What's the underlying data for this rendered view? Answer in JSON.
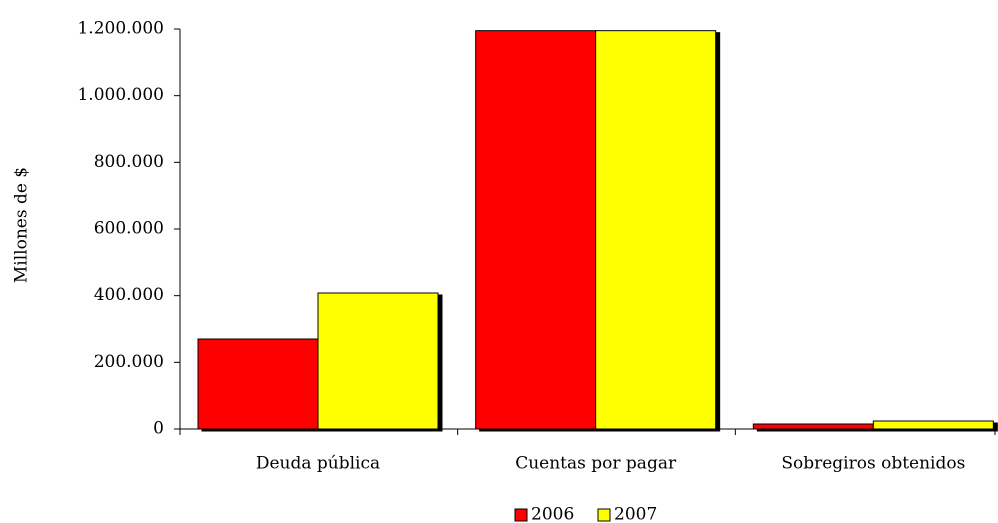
{
  "chart_data": {
    "type": "bar",
    "y_label": "Millones de $",
    "categories": [
      "Deuda pública",
      "Cuentas por pagar",
      "Sobregiros obtenidos"
    ],
    "series": [
      {
        "name": "2006",
        "color": "#ff0000",
        "values": [
          270000,
          1195000,
          15000
        ]
      },
      {
        "name": "2007",
        "color": "#ffff00",
        "values": [
          408000,
          1195000,
          24000
        ]
      }
    ],
    "ylim": [
      0,
      1200000
    ],
    "yticks": [
      0,
      {
        "value": 200000,
        "label": "200.000"
      },
      {
        "value": 400000,
        "label": "400.000"
      },
      {
        "value": 600000,
        "label": "600.000"
      },
      {
        "value": 800000,
        "label": "800.000"
      },
      {
        "value": 1000000,
        "label": "1.000.000"
      },
      {
        "value": 1200000,
        "label": "1.200.000"
      }
    ],
    "legend": "bottom"
  }
}
